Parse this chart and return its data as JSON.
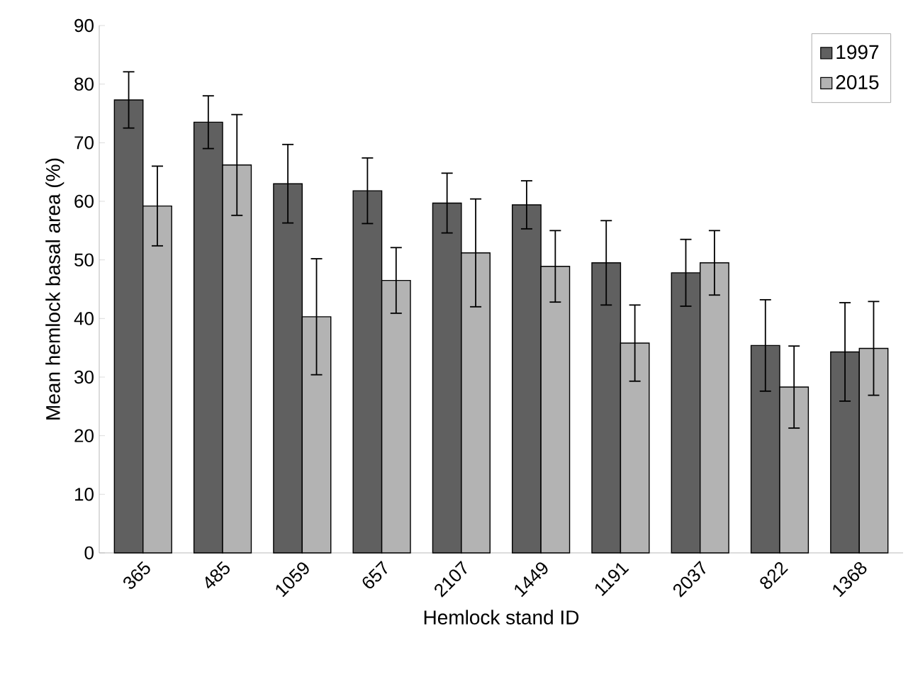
{
  "chart_data": {
    "type": "bar",
    "xlabel": "Hemlock stand ID",
    "ylabel": "Mean hemlock basal area (%)",
    "categories": [
      "365",
      "485",
      "1059",
      "657",
      "2107",
      "1449",
      "1191",
      "2037",
      "822",
      "1368"
    ],
    "series": [
      {
        "name": "1997",
        "color": "#606060",
        "values": [
          77.3,
          73.5,
          63,
          61.8,
          59.7,
          59.4,
          49.5,
          47.8,
          35.4,
          34.3
        ],
        "errors": [
          4.8,
          4.5,
          6.7,
          5.6,
          5.1,
          4.1,
          7.2,
          5.7,
          7.8,
          8.4
        ]
      },
      {
        "name": "2015",
        "color": "#b3b3b3",
        "values": [
          59.2,
          66.2,
          40.3,
          46.5,
          51.2,
          48.9,
          35.8,
          49.5,
          28.3,
          34.9
        ],
        "errors": [
          6.8,
          8.6,
          9.9,
          5.6,
          9.2,
          6.1,
          6.5,
          5.5,
          7,
          8
        ]
      }
    ],
    "ylim": [
      0,
      90
    ],
    "yticks": [
      0,
      10,
      20,
      30,
      40,
      50,
      60,
      70,
      80,
      90
    ],
    "grid": false,
    "legend": "top right"
  }
}
